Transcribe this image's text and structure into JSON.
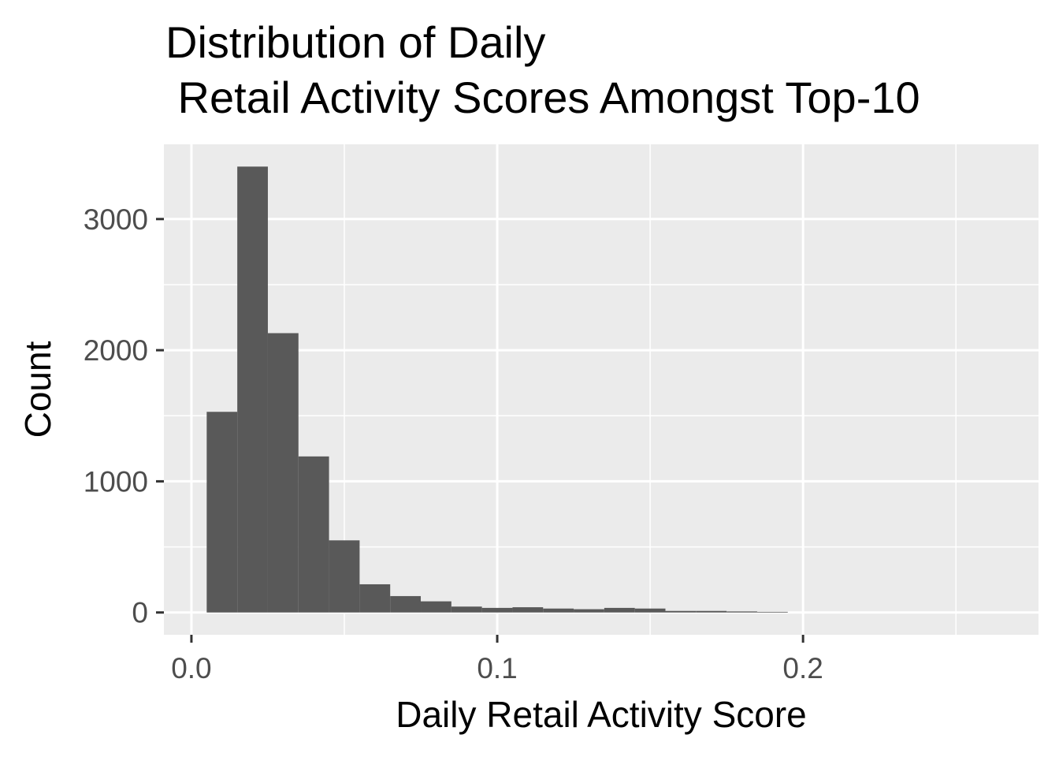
{
  "chart_data": {
    "type": "bar",
    "subtype": "histogram",
    "title_lines": [
      "Distribution of Daily",
      " Retail Activity Scores Amongst Top-10"
    ],
    "xlabel": "Daily Retail Activity Score",
    "ylabel": "Count",
    "xlim": [
      -0.009,
      0.277
    ],
    "ylim": [
      -170,
      3570
    ],
    "x_ticks": [
      0.0,
      0.1,
      0.2
    ],
    "x_tick_labels": [
      "0.0",
      "0.1",
      "0.2"
    ],
    "y_ticks": [
      0,
      1000,
      2000,
      3000
    ],
    "y_tick_labels": [
      "0",
      "1000",
      "2000",
      "3000"
    ],
    "x_minor_ticks": [
      0.05,
      0.15,
      0.25
    ],
    "y_minor_ticks": [
      500,
      1500,
      2500
    ],
    "grid": true,
    "bar_color": "#595959",
    "panel_color": "#ebebeb",
    "bins": [
      {
        "x0": 0.005,
        "x1": 0.015,
        "count": 1530
      },
      {
        "x0": 0.015,
        "x1": 0.025,
        "count": 3400
      },
      {
        "x0": 0.025,
        "x1": 0.035,
        "count": 2130
      },
      {
        "x0": 0.035,
        "x1": 0.045,
        "count": 1190
      },
      {
        "x0": 0.045,
        "x1": 0.055,
        "count": 550
      },
      {
        "x0": 0.055,
        "x1": 0.065,
        "count": 215
      },
      {
        "x0": 0.065,
        "x1": 0.075,
        "count": 125
      },
      {
        "x0": 0.075,
        "x1": 0.085,
        "count": 85
      },
      {
        "x0": 0.085,
        "x1": 0.095,
        "count": 45
      },
      {
        "x0": 0.095,
        "x1": 0.105,
        "count": 35
      },
      {
        "x0": 0.105,
        "x1": 0.115,
        "count": 40
      },
      {
        "x0": 0.115,
        "x1": 0.125,
        "count": 30
      },
      {
        "x0": 0.125,
        "x1": 0.135,
        "count": 25
      },
      {
        "x0": 0.135,
        "x1": 0.145,
        "count": 35
      },
      {
        "x0": 0.145,
        "x1": 0.155,
        "count": 30
      },
      {
        "x0": 0.155,
        "x1": 0.165,
        "count": 12
      },
      {
        "x0": 0.165,
        "x1": 0.175,
        "count": 12
      },
      {
        "x0": 0.175,
        "x1": 0.185,
        "count": 8
      },
      {
        "x0": 0.185,
        "x1": 0.195,
        "count": 5
      }
    ]
  }
}
